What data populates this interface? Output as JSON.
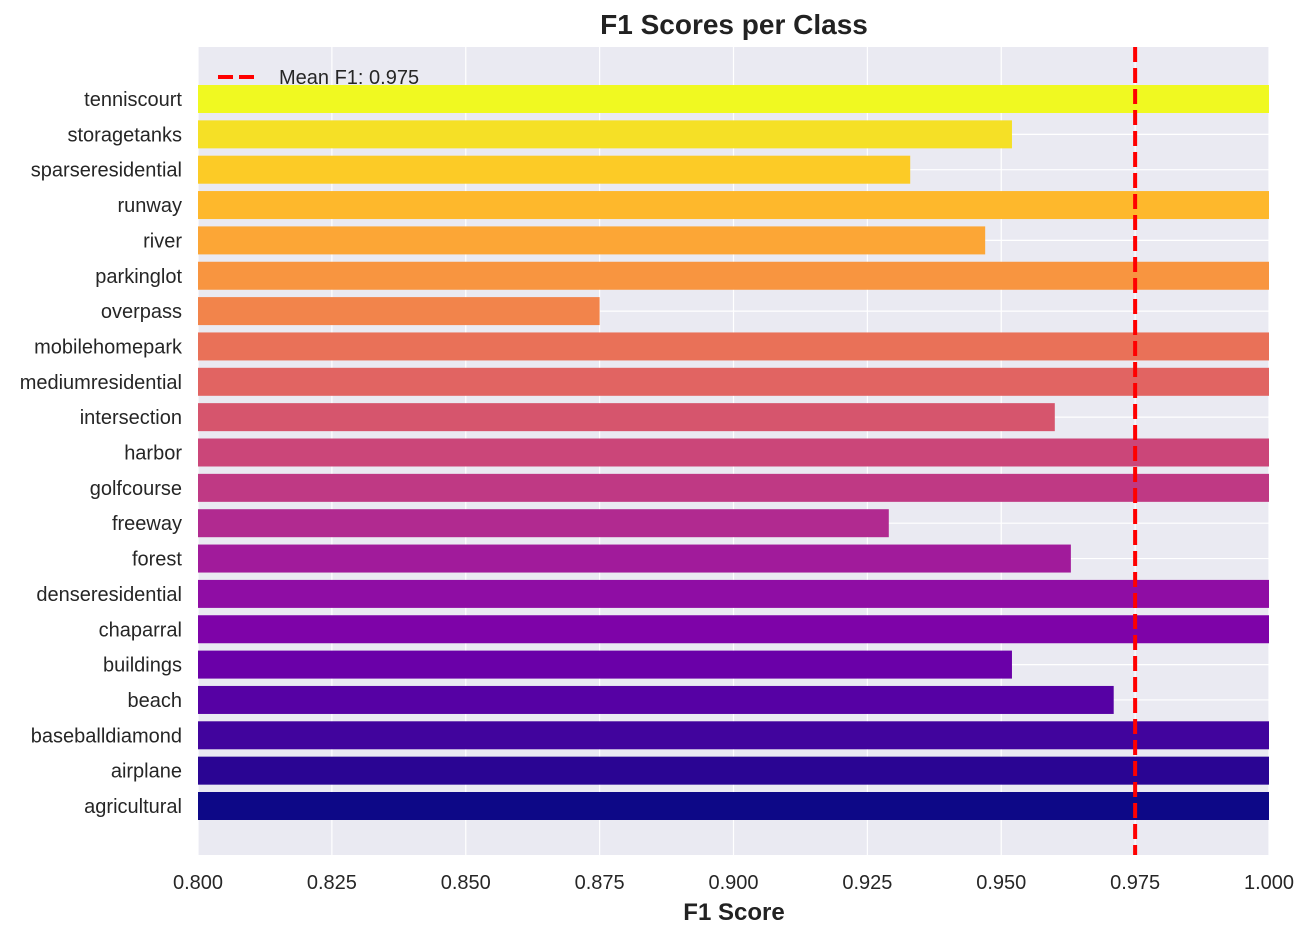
{
  "chart_data": {
    "type": "bar",
    "orientation": "horizontal",
    "title": "F1 Scores per Class",
    "xlabel": "F1 Score",
    "ylabel": "",
    "xlim": [
      0.8,
      1.0
    ],
    "xticks": [
      "0.800",
      "0.825",
      "0.850",
      "0.875",
      "0.900",
      "0.925",
      "0.950",
      "0.975",
      "1.000"
    ],
    "categories": [
      "agricultural",
      "airplane",
      "baseballdiamond",
      "beach",
      "buildings",
      "chaparral",
      "denseresidential",
      "forest",
      "freeway",
      "golfcourse",
      "harbor",
      "intersection",
      "mediumresidential",
      "mobilehomepark",
      "overpass",
      "parkinglot",
      "river",
      "runway",
      "sparseresidential",
      "storagetanks",
      "tenniscourt"
    ],
    "values": [
      1.0,
      1.0,
      1.0,
      0.971,
      0.952,
      1.0,
      1.0,
      0.963,
      0.929,
      1.0,
      1.0,
      0.96,
      1.0,
      1.0,
      0.875,
      1.0,
      0.947,
      1.0,
      0.933,
      0.952,
      1.0
    ],
    "colors": [
      "#0d0887",
      "#2a0593",
      "#41049d",
      "#5601a4",
      "#6a00a8",
      "#7e03a8",
      "#8f0da4",
      "#a11b9b",
      "#b12a90",
      "#bf3984",
      "#cb4679",
      "#d6556d",
      "#e16462",
      "#e97158",
      "#f2844b",
      "#f89540",
      "#fca636",
      "#feb82c",
      "#fccb26",
      "#f5e026",
      "#f0f921"
    ],
    "mean_line": {
      "value": 0.975,
      "color": "#ff0000",
      "label": "Mean F1: 0.975"
    },
    "legend_position": "top-left",
    "grid": true,
    "background_color": "#eaeaf2"
  }
}
